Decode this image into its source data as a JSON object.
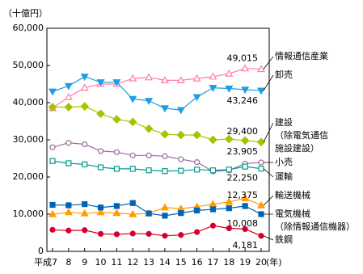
{
  "chart_data": {
    "type": "line",
    "y_label": "（十億円）",
    "x_label": "(年)",
    "categories": [
      "平成7",
      "8",
      "9",
      "10",
      "11",
      "12",
      "13",
      "14",
      "15",
      "16",
      "17",
      "18",
      "19",
      "20"
    ],
    "ylim": [
      0,
      60000
    ],
    "yticks": [
      0,
      {
        "value": 10000,
        "label": "10,000"
      },
      {
        "value": 20000,
        "label": "20,000"
      },
      {
        "value": 30000,
        "label": "30,000"
      },
      {
        "value": 40000,
        "label": "40,000"
      },
      {
        "value": 50000,
        "label": "50,000"
      },
      {
        "value": 60000,
        "label": "60,000"
      }
    ],
    "series": [
      {
        "name": [
          "情報通信産業"
        ],
        "color": "#ff7fa8",
        "values": [
          38500,
          41500,
          44000,
          45000,
          45000,
          46500,
          46800,
          46000,
          46000,
          46500,
          47000,
          47800,
          49200,
          49015
        ],
        "value_labels": [
          null,
          null,
          null,
          null,
          null,
          null,
          null,
          null,
          null,
          null,
          null,
          null,
          null,
          "49,015"
        ]
      },
      {
        "name": [
          "卸売"
        ],
        "color": "#1e9ee0",
        "values": [
          43000,
          44500,
          47000,
          45500,
          45500,
          41000,
          40500,
          38500,
          38000,
          41500,
          44000,
          43800,
          43500,
          43246
        ],
        "value_labels": [
          null,
          null,
          null,
          null,
          null,
          null,
          null,
          null,
          null,
          null,
          null,
          null,
          null,
          "43,246"
        ]
      },
      {
        "name": [
          "建設",
          "（除電気通信",
          "施設建設）"
        ],
        "color": "#a5c400",
        "values": [
          38800,
          38800,
          39000,
          37000,
          35500,
          34800,
          33000,
          31500,
          31300,
          31300,
          30000,
          30200,
          29800,
          29400
        ],
        "value_labels": [
          null,
          null,
          null,
          null,
          null,
          null,
          null,
          null,
          null,
          null,
          null,
          null,
          null,
          "29,400"
        ]
      },
      {
        "name": [
          "小売"
        ],
        "color": "#9b6a9b",
        "values": [
          28000,
          29200,
          28800,
          27000,
          26700,
          25800,
          25800,
          25600,
          24800,
          24000,
          21500,
          21800,
          23600,
          23905
        ],
        "value_labels": [
          null,
          null,
          null,
          null,
          null,
          null,
          null,
          null,
          null,
          null,
          null,
          null,
          null,
          "23,905"
        ]
      },
      {
        "name": [
          "運輸"
        ],
        "color": "#009b8f",
        "values": [
          24300,
          23700,
          23400,
          22600,
          22200,
          22200,
          21800,
          21600,
          21700,
          22000,
          21800,
          22000,
          22800,
          22250
        ],
        "value_labels": [
          null,
          null,
          null,
          null,
          null,
          null,
          null,
          null,
          null,
          null,
          null,
          null,
          null,
          "22,250"
        ]
      },
      {
        "name": [
          "輸送機械"
        ],
        "color": "#ff9c00",
        "values": [
          10000,
          10500,
          10200,
          10500,
          10300,
          10000,
          10200,
          11800,
          11500,
          12000,
          12700,
          13300,
          14300,
          12375
        ],
        "value_labels": [
          null,
          null,
          null,
          null,
          null,
          null,
          null,
          null,
          null,
          null,
          null,
          null,
          null,
          "12,375"
        ]
      },
      {
        "name": [
          "電気機械",
          "（除情報通信機器）"
        ],
        "color": "#0064b4",
        "values": [
          12500,
          12400,
          12700,
          11800,
          12200,
          13000,
          10200,
          9600,
          10300,
          11000,
          11300,
          11600,
          12200,
          10008
        ],
        "value_labels": [
          null,
          null,
          null,
          null,
          null,
          null,
          null,
          null,
          null,
          null,
          null,
          null,
          null,
          "10,008"
        ]
      },
      {
        "name": [
          "鉄鋼"
        ],
        "color": "#d4002a",
        "values": [
          5800,
          5600,
          5700,
          4700,
          4600,
          4800,
          4700,
          4200,
          4400,
          5200,
          6900,
          6200,
          6000,
          4181
        ],
        "value_labels": [
          null,
          null,
          null,
          null,
          null,
          null,
          null,
          null,
          null,
          null,
          null,
          null,
          null,
          "4,181"
        ]
      }
    ]
  }
}
